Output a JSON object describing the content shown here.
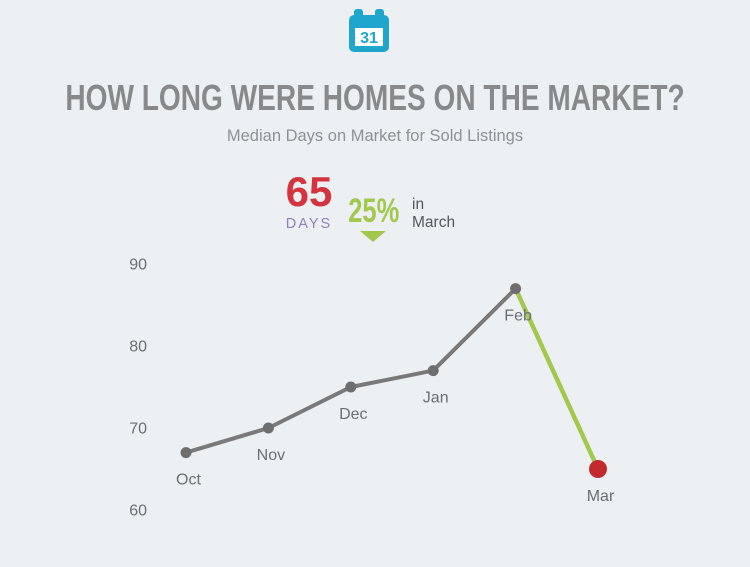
{
  "page": {
    "background": "#edf0f2"
  },
  "header": {
    "icon": "calendar-31-icon",
    "icon_day": "31",
    "icon_color": "#1fa6cc",
    "title": "HOW LONG WERE HOMES ON THE MARKET?",
    "subtitle": "Median Days on Market for Sold Listings"
  },
  "highlight": {
    "value": "65",
    "value_color": "#d5333e",
    "unit": "DAYS",
    "unit_color": "#8f80c0",
    "change": "25%",
    "change_color": "#a2c94e",
    "change_direction": "down",
    "context_line1": "in",
    "context_line2": "March"
  },
  "chart_data": {
    "type": "line",
    "title": "Median Days on Market for Sold Listings",
    "categories": [
      "Oct",
      "Nov",
      "Dec",
      "Jan",
      "Feb",
      "Mar"
    ],
    "values": [
      67,
      70,
      75,
      77,
      87,
      65
    ],
    "yticks": [
      90,
      80,
      70,
      60
    ],
    "ylim": [
      58,
      92
    ],
    "xlabel": "",
    "ylabel": "",
    "grid": false,
    "legend": false,
    "line_color": "#797979",
    "last_segment_color": "#a2c94e",
    "point_color": "#6e6e6e",
    "last_point_color": "#c22a2e",
    "tick_color": "#6b6f73"
  }
}
